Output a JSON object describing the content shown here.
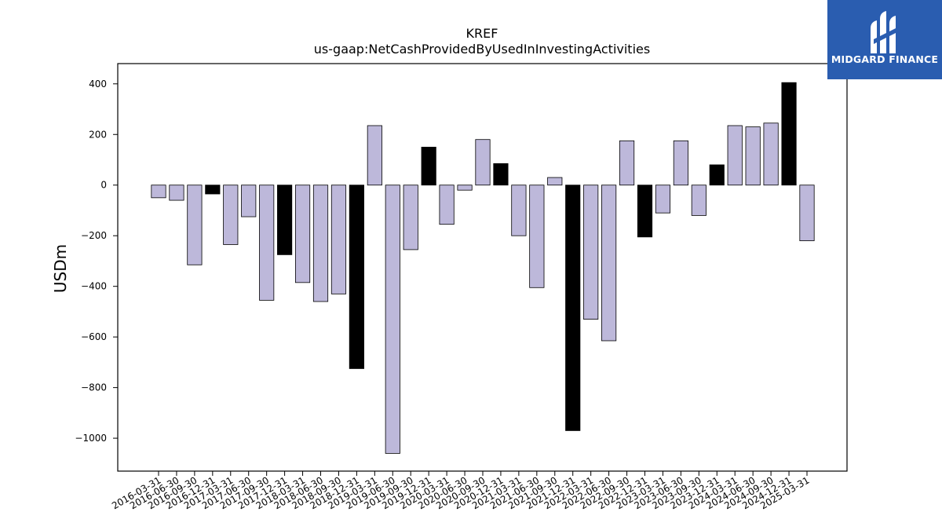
{
  "chart_data": {
    "type": "bar",
    "title": "KREF",
    "subtitle": "us-gaap:NetCashProvidedByUsedInInvestingActivities",
    "ylabel": "USDm",
    "xlabel": "",
    "ylim": [
      -1130,
      480
    ],
    "yticks": [
      400,
      200,
      0,
      -200,
      -400,
      -600,
      -800,
      -1000
    ],
    "ytick_labels": [
      "400",
      "200",
      "0",
      "−200",
      "−400",
      "−600",
      "−800",
      "−1000"
    ],
    "categories": [
      "2016-03-31",
      "2016-06-30",
      "2016-09-30",
      "2016-12-31",
      "2017-03-31",
      "2017-06-30",
      "2017-09-30",
      "2017-12-31",
      "2018-03-31",
      "2018-06-30",
      "2018-09-30",
      "2018-12-31",
      "2019-03-31",
      "2019-06-30",
      "2019-09-30",
      "2019-12-31",
      "2020-03-31",
      "2020-06-30",
      "2020-09-30",
      "2020-12-31",
      "2021-03-31",
      "2021-06-30",
      "2021-09-30",
      "2021-12-31",
      "2022-03-31",
      "2022-06-30",
      "2022-09-30",
      "2022-12-31",
      "2023-03-31",
      "2023-06-30",
      "2023-09-30",
      "2023-12-31",
      "2024-03-31",
      "2024-06-30",
      "2024-09-30",
      "2024-12-31",
      "2025-03-31"
    ],
    "values": [
      -50,
      -60,
      -315,
      -35,
      -235,
      -125,
      -455,
      -275,
      -385,
      -460,
      -430,
      -725,
      235,
      -1060,
      -255,
      150,
      -155,
      -20,
      180,
      85,
      -200,
      -405,
      30,
      -970,
      -530,
      -615,
      175,
      -205,
      -110,
      175,
      -120,
      80,
      235,
      230,
      245,
      405,
      -220
    ],
    "highlight_indices": [
      3,
      7,
      11,
      15,
      19,
      23,
      27,
      31,
      35
    ],
    "colors": {
      "normal": "#bdb8da",
      "highlight": "#000000",
      "edge": "#000000"
    },
    "grid": false,
    "legend": "none"
  },
  "logo": {
    "text": "MIDGARD FINANCE",
    "background": "#2a5db0"
  }
}
